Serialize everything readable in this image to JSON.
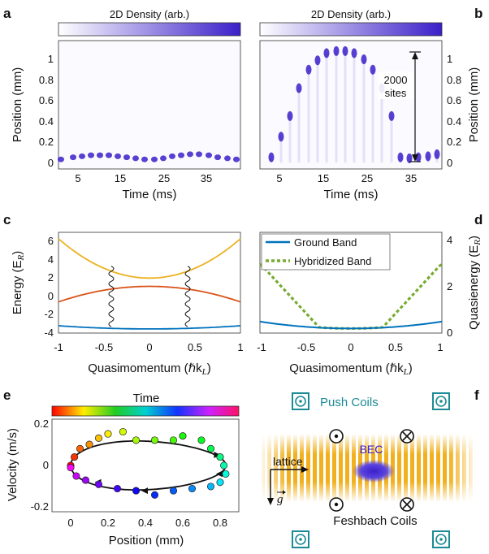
{
  "panels": {
    "a": {
      "letter": "a",
      "colorbar_label": "2D Density (arb.)",
      "ylabel": "Position (mm)",
      "xlabel": "Time (ms)",
      "yticks": [
        "0",
        "0.2",
        "0.4",
        "0.6",
        "0.8",
        "1"
      ],
      "xticks": [
        "5",
        "15",
        "25",
        "35"
      ]
    },
    "b": {
      "letter": "b",
      "colorbar_label": "2D Density (arb.)",
      "ylabel": "Position (mm)",
      "xlabel": "Time (ms)",
      "yticks": [
        "0",
        "0.2",
        "0.4",
        "0.6",
        "0.8",
        "1"
      ],
      "xticks": [
        "5",
        "15",
        "25",
        "35"
      ],
      "annotation_line1": "2000",
      "annotation_line2": "sites"
    },
    "c": {
      "letter": "c",
      "ylabel": "Energy (E",
      "ylabel_sub": "R",
      "ylabel_close": ")",
      "xlabel": "Quasimomentum (ℏk",
      "xlabel_sub": "L",
      "xlabel_close": ")",
      "yticks": [
        "-4",
        "-2",
        "0",
        "2",
        "4",
        "6"
      ],
      "xticks": [
        "-1",
        "-0.5",
        "0",
        "0.5",
        "1"
      ]
    },
    "d": {
      "letter": "d",
      "ylabel": "Quasienergy (E",
      "ylabel_sub": "R",
      "ylabel_close": ")",
      "xlabel": "Quasimomentum (ℏk",
      "xlabel_sub": "L",
      "xlabel_close": ")",
      "yticks": [
        "0",
        "2",
        "4"
      ],
      "xticks": [
        "-1",
        "-0.5",
        "0",
        "0.5",
        "1"
      ],
      "legend": [
        "Ground Band",
        "Hybridized Band"
      ]
    },
    "e": {
      "letter": "e",
      "colorbar_label": "Time",
      "ylabel": "Velocity (m/s)",
      "xlabel": "Position (mm)",
      "yticks": [
        "-0.2",
        "0",
        "0.2"
      ],
      "xticks": [
        "0",
        "0.2",
        "0.4",
        "0.6",
        "0.8"
      ]
    },
    "f": {
      "letter": "f",
      "push_coils": "Push Coils",
      "bec": "BEC",
      "lattice": "lattice",
      "gravity": "g",
      "feshbach": "Feshbach Coils"
    }
  },
  "colors": {
    "density": "#3b1fc9",
    "band_top": "#edb120",
    "band_mid": "#d95319",
    "band_ground": "#0072bd",
    "hybridized": "#77ac30",
    "coil": "#1b8a94",
    "lattice": "#f2b01e"
  },
  "chart_data": [
    {
      "panel": "c",
      "type": "line",
      "xlabel": "Quasimomentum (ℏk_L)",
      "ylabel": "Energy (E_R)",
      "xlim": [
        -1,
        1
      ],
      "ylim": [
        -4,
        7
      ],
      "x": [
        -1,
        -0.75,
        -0.5,
        -0.25,
        0,
        0.25,
        0.5,
        0.75,
        1
      ],
      "series": [
        {
          "values": [
            6.3,
            5.2,
            3.9,
            2.6,
            2.0,
            2.6,
            3.9,
            5.2,
            6.3
          ]
        },
        {
          "values": [
            -0.6,
            -0.3,
            0.2,
            0.8,
            1.1,
            0.8,
            0.2,
            -0.3,
            -0.6
          ]
        },
        {
          "values": [
            -3.2,
            -3.3,
            -3.4,
            -3.5,
            -3.55,
            -3.5,
            -3.4,
            -3.3,
            -3.2
          ]
        }
      ]
    },
    {
      "panel": "d",
      "type": "line",
      "xlabel": "Quasimomentum (ℏk_L)",
      "ylabel": "Quasienergy (E_R)",
      "xlim": [
        -1,
        1
      ],
      "ylim": [
        -0.2,
        4.2
      ],
      "x": [
        -1,
        -0.75,
        -0.5,
        -0.25,
        0,
        0.25,
        0.5,
        0.75,
        1
      ],
      "series": [
        {
          "name": "Ground Band",
          "values": [
            0.3,
            0.25,
            0.15,
            0.05,
            0,
            0.05,
            0.15,
            0.25,
            0.3
          ]
        },
        {
          "name": "Hybridized Band",
          "values": [
            2.8,
            1.7,
            0.6,
            0.03,
            0,
            0.03,
            0.6,
            1.7,
            2.8
          ]
        }
      ]
    },
    {
      "panel": "e",
      "type": "scatter",
      "xlabel": "Position (mm)",
      "ylabel": "Velocity (m/s)",
      "xlim": [
        -0.1,
        0.9
      ],
      "ylim": [
        -0.22,
        0.22
      ],
      "x": [
        0,
        0.02,
        0.05,
        0.1,
        0.15,
        0.2,
        0.28,
        0.35,
        0.45,
        0.55,
        0.6,
        0.7,
        0.75,
        0.8,
        0.82,
        0.83,
        0.8,
        0.75,
        0.65,
        0.55,
        0.45,
        0.35,
        0.25,
        0.15,
        0.08,
        0.03,
        0
      ],
      "y": [
        0,
        0.04,
        0.08,
        0.1,
        0.13,
        0.15,
        0.16,
        0.12,
        0.12,
        0.12,
        0.14,
        0.12,
        0.08,
        0.04,
        0,
        -0.04,
        -0.08,
        -0.1,
        -0.11,
        -0.12,
        -0.14,
        -0.12,
        -0.11,
        -0.09,
        -0.07,
        -0.05,
        -0.01
      ]
    }
  ]
}
